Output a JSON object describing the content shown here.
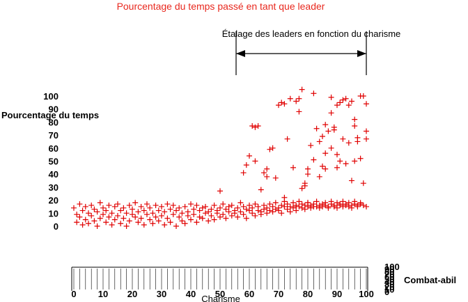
{
  "chart_data": {
    "type": "scatter",
    "title": "Pourcentage du temps passé en tant que leader",
    "annotation": "Étalage des leaders en fonction du charisme",
    "annotation_range": [
      55,
      100
    ],
    "ylabel": "Pourcentage du temps",
    "xlabel": "Charisme",
    "zlabel": "Combat-abil",
    "xlim": [
      0,
      100
    ],
    "ylim": [
      0,
      100
    ],
    "x_ticks": [
      0,
      10,
      20,
      30,
      40,
      50,
      60,
      70,
      80,
      90,
      100
    ],
    "y_ticks": [
      0,
      10,
      20,
      30,
      40,
      50,
      60,
      70,
      80,
      90,
      100
    ],
    "z_ticks": [
      "100",
      "90",
      "80",
      "70",
      "60",
      "50",
      "40",
      "30",
      "20",
      "10",
      "0"
    ],
    "marker": "plus",
    "color": "#e00000",
    "points": [
      [
        0,
        14
      ],
      [
        1,
        3
      ],
      [
        1,
        9
      ],
      [
        2,
        17
      ],
      [
        2,
        7
      ],
      [
        3,
        12
      ],
      [
        3,
        1
      ],
      [
        4,
        5
      ],
      [
        4,
        15
      ],
      [
        5,
        10
      ],
      [
        5,
        2
      ],
      [
        6,
        16
      ],
      [
        6,
        8
      ],
      [
        7,
        4
      ],
      [
        7,
        13
      ],
      [
        8,
        11
      ],
      [
        8,
        0
      ],
      [
        9,
        6
      ],
      [
        9,
        18
      ],
      [
        10,
        9
      ],
      [
        10,
        14
      ],
      [
        11,
        3
      ],
      [
        11,
        12
      ],
      [
        12,
        7
      ],
      [
        12,
        16
      ],
      [
        13,
        1
      ],
      [
        13,
        10
      ],
      [
        14,
        15
      ],
      [
        14,
        5
      ],
      [
        15,
        8
      ],
      [
        15,
        17
      ],
      [
        16,
        2
      ],
      [
        16,
        12
      ],
      [
        17,
        6
      ],
      [
        17,
        14
      ],
      [
        18,
        10
      ],
      [
        18,
        0
      ],
      [
        19,
        16
      ],
      [
        19,
        4
      ],
      [
        20,
        9
      ],
      [
        20,
        13
      ],
      [
        21,
        7
      ],
      [
        21,
        18
      ],
      [
        22,
        3
      ],
      [
        22,
        11
      ],
      [
        23,
        15
      ],
      [
        23,
        6
      ],
      [
        24,
        1
      ],
      [
        24,
        12
      ],
      [
        25,
        9
      ],
      [
        25,
        17
      ],
      [
        26,
        5
      ],
      [
        26,
        14
      ],
      [
        27,
        10
      ],
      [
        27,
        2
      ],
      [
        28,
        16
      ],
      [
        28,
        7
      ],
      [
        29,
        12
      ],
      [
        29,
        4
      ],
      [
        30,
        8
      ],
      [
        30,
        15
      ],
      [
        31,
        1
      ],
      [
        31,
        11
      ],
      [
        32,
        17
      ],
      [
        32,
        6
      ],
      [
        33,
        13
      ],
      [
        33,
        3
      ],
      [
        34,
        9
      ],
      [
        34,
        16
      ],
      [
        35,
        0
      ],
      [
        35,
        12
      ],
      [
        36,
        7
      ],
      [
        36,
        14
      ],
      [
        37,
        4
      ],
      [
        37,
        10
      ],
      [
        38,
        15
      ],
      [
        38,
        2
      ],
      [
        39,
        11
      ],
      [
        39,
        8
      ],
      [
        40,
        17
      ],
      [
        40,
        5
      ],
      [
        41,
        13
      ],
      [
        41,
        9
      ],
      [
        42,
        16
      ],
      [
        42,
        3
      ],
      [
        43,
        12
      ],
      [
        43,
        7
      ],
      [
        44,
        14
      ],
      [
        44,
        6
      ],
      [
        45,
        10
      ],
      [
        45,
        15
      ],
      [
        46,
        4
      ],
      [
        46,
        11
      ],
      [
        47,
        8
      ],
      [
        47,
        13
      ],
      [
        48,
        16
      ],
      [
        48,
        5
      ],
      [
        49,
        10
      ],
      [
        49,
        12
      ],
      [
        50,
        7
      ],
      [
        50,
        14
      ],
      [
        51,
        17
      ],
      [
        51,
        9
      ],
      [
        52,
        6
      ],
      [
        52,
        13
      ],
      [
        53,
        11
      ],
      [
        53,
        15
      ],
      [
        54,
        8
      ],
      [
        54,
        16
      ],
      [
        55,
        10
      ],
      [
        55,
        12
      ],
      [
        56,
        14
      ],
      [
        56,
        7
      ],
      [
        57,
        18
      ],
      [
        57,
        11
      ],
      [
        58,
        9
      ],
      [
        58,
        15
      ],
      [
        59,
        13
      ],
      [
        59,
        6
      ],
      [
        60,
        12
      ],
      [
        60,
        16
      ],
      [
        61,
        10
      ],
      [
        61,
        14
      ],
      [
        62,
        8
      ],
      [
        62,
        17
      ],
      [
        63,
        12
      ],
      [
        63,
        15
      ],
      [
        64,
        11
      ],
      [
        64,
        9
      ],
      [
        65,
        16
      ],
      [
        65,
        13
      ],
      [
        66,
        14
      ],
      [
        66,
        10
      ],
      [
        67,
        17
      ],
      [
        67,
        12
      ],
      [
        68,
        15
      ],
      [
        68,
        11
      ],
      [
        69,
        13
      ],
      [
        69,
        18
      ],
      [
        70,
        14
      ],
      [
        70,
        12
      ],
      [
        71,
        16
      ],
      [
        71,
        10
      ],
      [
        72,
        15
      ],
      [
        72,
        19
      ],
      [
        73,
        13
      ],
      [
        73,
        17
      ],
      [
        74,
        15
      ],
      [
        74,
        11
      ],
      [
        75,
        18
      ],
      [
        75,
        14
      ],
      [
        76,
        16
      ],
      [
        76,
        12
      ],
      [
        77,
        15
      ],
      [
        77,
        19
      ],
      [
        78,
        14
      ],
      [
        78,
        17
      ],
      [
        79,
        16
      ],
      [
        79,
        13
      ],
      [
        80,
        15
      ],
      [
        80,
        18
      ],
      [
        81,
        14
      ],
      [
        81,
        16
      ],
      [
        82,
        17
      ],
      [
        82,
        15
      ],
      [
        83,
        15
      ],
      [
        83,
        19
      ],
      [
        84,
        16
      ],
      [
        84,
        14
      ],
      [
        85,
        17
      ],
      [
        85,
        15
      ],
      [
        86,
        18
      ],
      [
        86,
        16
      ],
      [
        87,
        15
      ],
      [
        87,
        14
      ],
      [
        88,
        17
      ],
      [
        88,
        19
      ],
      [
        89,
        16
      ],
      [
        89,
        15
      ],
      [
        90,
        18
      ],
      [
        90,
        14
      ],
      [
        91,
        17
      ],
      [
        91,
        16
      ],
      [
        92,
        15
      ],
      [
        92,
        19
      ],
      [
        93,
        17
      ],
      [
        93,
        16
      ],
      [
        94,
        18
      ],
      [
        94,
        15
      ],
      [
        95,
        16
      ],
      [
        95,
        14
      ],
      [
        96,
        17
      ],
      [
        96,
        19
      ],
      [
        97,
        15
      ],
      [
        97,
        16
      ],
      [
        98,
        17
      ],
      [
        98,
        18
      ],
      [
        99,
        16
      ],
      [
        100,
        15
      ],
      [
        50,
        27
      ],
      [
        58,
        41
      ],
      [
        59,
        47
      ],
      [
        60,
        54
      ],
      [
        61,
        77
      ],
      [
        62,
        76
      ],
      [
        63,
        77
      ],
      [
        64,
        28
      ],
      [
        65,
        41
      ],
      [
        66,
        38
      ],
      [
        67,
        59
      ],
      [
        68,
        60
      ],
      [
        69,
        37
      ],
      [
        70,
        93
      ],
      [
        71,
        95
      ],
      [
        72,
        94
      ],
      [
        73,
        67
      ],
      [
        74,
        98
      ],
      [
        75,
        45
      ],
      [
        76,
        96
      ],
      [
        77,
        88
      ],
      [
        77,
        98
      ],
      [
        78,
        105
      ],
      [
        78,
        29
      ],
      [
        79,
        31
      ],
      [
        79,
        33
      ],
      [
        80,
        44
      ],
      [
        80,
        40
      ],
      [
        81,
        62
      ],
      [
        82,
        51
      ],
      [
        82,
        102
      ],
      [
        83,
        75
      ],
      [
        84,
        65
      ],
      [
        85,
        46
      ],
      [
        85,
        69
      ],
      [
        86,
        78
      ],
      [
        86,
        56
      ],
      [
        87,
        73
      ],
      [
        88,
        87
      ],
      [
        88,
        99
      ],
      [
        89,
        74
      ],
      [
        89,
        76
      ],
      [
        90,
        93
      ],
      [
        90,
        55
      ],
      [
        91,
        95
      ],
      [
        91,
        50
      ],
      [
        92,
        97
      ],
      [
        92,
        67
      ],
      [
        93,
        98
      ],
      [
        93,
        48
      ],
      [
        94,
        93
      ],
      [
        94,
        64
      ],
      [
        95,
        96
      ],
      [
        95,
        35
      ],
      [
        96,
        77
      ],
      [
        96,
        82
      ],
      [
        97,
        65
      ],
      [
        97,
        68
      ],
      [
        98,
        100
      ],
      [
        98,
        52
      ],
      [
        99,
        100
      ],
      [
        99,
        33
      ],
      [
        100,
        73
      ],
      [
        100,
        67
      ],
      [
        100,
        94
      ],
      [
        86,
        44
      ],
      [
        84,
        38
      ],
      [
        88,
        60
      ],
      [
        90,
        45
      ],
      [
        96,
        50
      ],
      [
        72,
        22
      ],
      [
        80,
        18
      ],
      [
        76,
        15
      ],
      [
        66,
        44
      ],
      [
        62,
        50
      ]
    ]
  }
}
